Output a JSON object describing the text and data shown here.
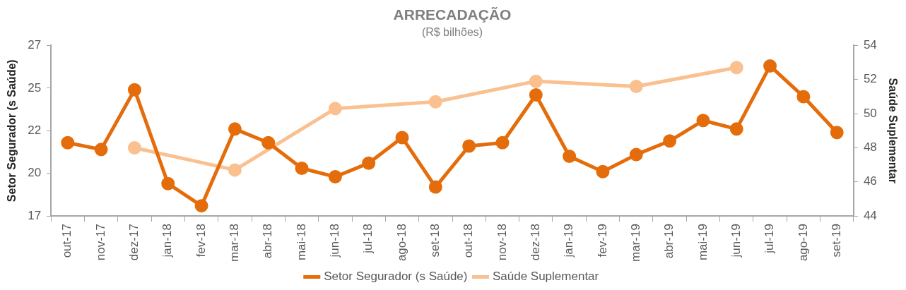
{
  "chart_data": {
    "type": "line",
    "title": "ARRECADAÇÃO",
    "subtitle": "(R$ bilhões)",
    "ylabel": "Setor Segurador (s Saúde)",
    "y2label": "Saúde Suplementar",
    "categories": [
      "out-17",
      "nov-17",
      "dez-17",
      "jan-18",
      "fev-18",
      "mar-18",
      "abr-18",
      "mai-18",
      "jun-18",
      "jul-18",
      "ago-18",
      "set-18",
      "out-18",
      "nov-18",
      "dez-18",
      "jan-19",
      "fev-19",
      "mar-19",
      "abr-19",
      "mai-19",
      "jun-19",
      "jul-19",
      "ago-19",
      "set-19"
    ],
    "series": [
      {
        "name": "Setor Segurador (s Saúde)",
        "color": "#e46c0a",
        "values": [
          21.3,
          20.9,
          24.4,
          18.9,
          17.6,
          22.1,
          21.3,
          19.8,
          19.3,
          20.1,
          21.6,
          18.7,
          21.1,
          21.3,
          24.1,
          20.5,
          19.6,
          20.6,
          21.4,
          22.6,
          22.1,
          25.8,
          24.0,
          21.9
        ]
      },
      {
        "name": "Saúde Suplementar",
        "color": "#fac090",
        "axis": "y2",
        "values": [
          null,
          null,
          48.0,
          null,
          null,
          46.7,
          null,
          null,
          50.3,
          null,
          null,
          50.7,
          null,
          null,
          51.9,
          null,
          null,
          51.6,
          null,
          null,
          52.7,
          null,
          null,
          null
        ]
      }
    ],
    "ylim": [
      17,
      27
    ],
    "yticks": [
      17,
      {
        "value": 19.5,
        "label": "20"
      },
      22,
      {
        "value": 24.5,
        "label": "25"
      },
      27
    ],
    "y2lim": [
      44,
      54
    ],
    "y2ticks": [
      44,
      46,
      48,
      50,
      52,
      54
    ],
    "legend": "bottom",
    "marker": "circle"
  }
}
